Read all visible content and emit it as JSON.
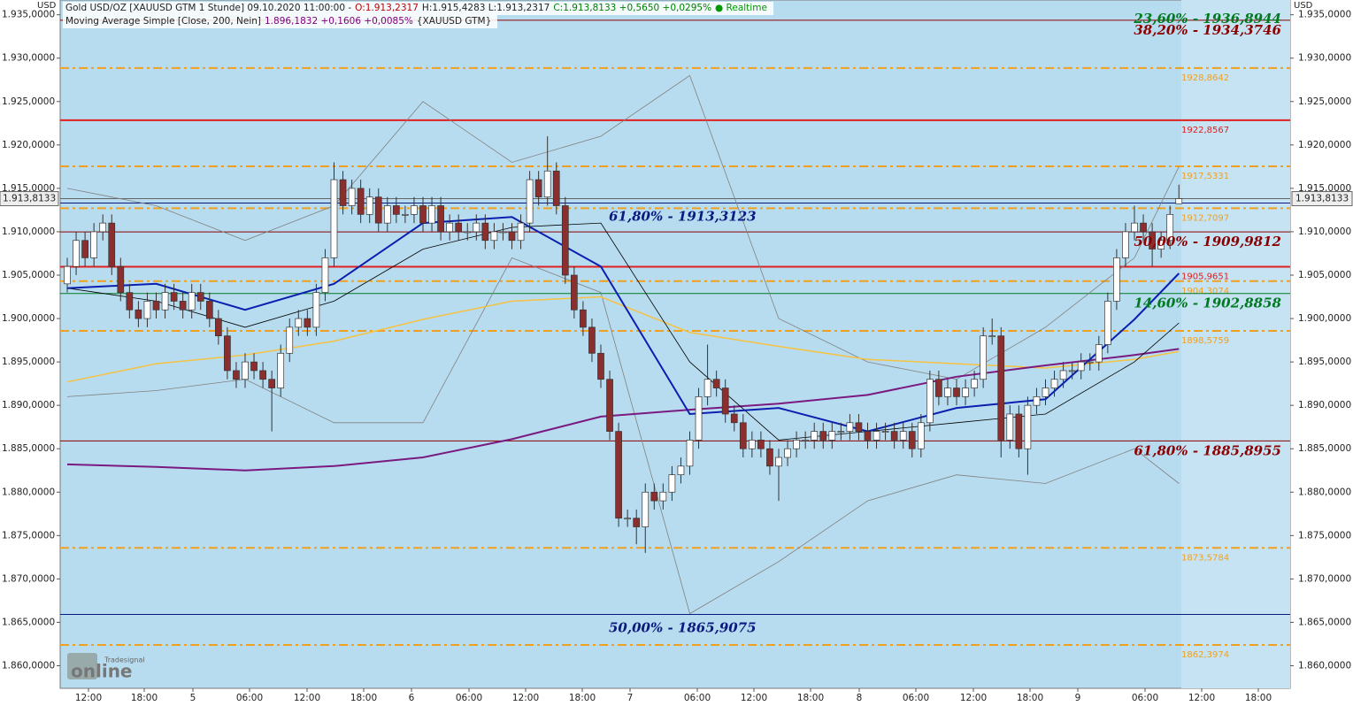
{
  "chart_data": {
    "type": "candlestick",
    "header": {
      "line1": [
        {
          "text": "Gold USD/OZ [XAUUSD GTM 1 Stunde] 09.10.2020 11:00:00 -",
          "color": "#222222"
        },
        {
          "text": "O:1.913,2317",
          "color": "#c00000"
        },
        {
          "text": "H:1.915,4283 L:1.913,2317",
          "color": "#222222"
        },
        {
          "text": "C:1.913,8133 +0,5650 +0,0295%",
          "color": "#008000"
        },
        {
          "text": "● Realtime",
          "color": "#009900"
        }
      ],
      "line2": [
        {
          "text": "Moving Average Simple [Close, 200, Nein]",
          "color": "#222222"
        },
        {
          "text": "1.896,1832 +0,1606 +0,0085%",
          "color": "#800080"
        },
        {
          "text": "{XAUUSD GTM}",
          "color": "#222222"
        }
      ]
    },
    "currency": "USD",
    "ylim": [
      1857.4,
      1936.7
    ],
    "yticks": [
      {
        "value": 1935,
        "label": "1.935,0000"
      },
      {
        "value": 1930,
        "label": "1.930,0000"
      },
      {
        "value": 1925,
        "label": "1.925,0000"
      },
      {
        "value": 1920,
        "label": "1.920,0000"
      },
      {
        "value": 1915,
        "label": "1.915,0000"
      },
      {
        "value": 1910,
        "label": "1.910,0000"
      },
      {
        "value": 1905,
        "label": "1.905,0000"
      },
      {
        "value": 1900,
        "label": "1.900,0000"
      },
      {
        "value": 1895,
        "label": "1.895,0000"
      },
      {
        "value": 1890,
        "label": "1.890,0000"
      },
      {
        "value": 1885,
        "label": "1.885,0000"
      },
      {
        "value": 1880,
        "label": "1.880,0000"
      },
      {
        "value": 1875,
        "label": "1.875,0000"
      },
      {
        "value": 1870,
        "label": "1.870,0000"
      },
      {
        "value": 1865,
        "label": "1.865,0000"
      },
      {
        "value": 1860,
        "label": "1.860,0000"
      }
    ],
    "xlabels": [
      "12:00",
      "18:00",
      "5",
      "06:00",
      "12:00",
      "18:00",
      "6",
      "06:00",
      "12:00",
      "18:00",
      "7",
      "06:00",
      "12:00",
      "18:00",
      "8",
      "06:00",
      "12:00",
      "18:00",
      "9",
      "06:00",
      "12:00",
      "18:00"
    ],
    "last_price": {
      "value": 1913.8133,
      "label": "1.913,8133"
    },
    "up_color": "#ffffff",
    "down_color": "#8b2e2e",
    "candles": [
      [
        1904,
        1907,
        1903,
        1906
      ],
      [
        1906,
        1910,
        1905,
        1909
      ],
      [
        1909,
        1910,
        1906,
        1907
      ],
      [
        1907,
        1911,
        1906,
        1910
      ],
      [
        1910,
        1912,
        1909,
        1911
      ],
      [
        1911,
        1912,
        1905,
        1906
      ],
      [
        1906,
        1907,
        1902,
        1903
      ],
      [
        1903,
        1904,
        1900,
        1901
      ],
      [
        1901,
        1902,
        1899,
        1900
      ],
      [
        1900,
        1903,
        1899,
        1902
      ],
      [
        1902,
        1903,
        1900,
        1901
      ],
      [
        1901,
        1904,
        1900,
        1903
      ],
      [
        1903,
        1904,
        1901,
        1902
      ],
      [
        1902,
        1903,
        1900,
        1901
      ],
      [
        1901,
        1904,
        1900,
        1903
      ],
      [
        1903,
        1904,
        1901,
        1902
      ],
      [
        1902,
        1903,
        1899,
        1900
      ],
      [
        1900,
        1901,
        1897,
        1898
      ],
      [
        1898,
        1899,
        1893,
        1894
      ],
      [
        1894,
        1895,
        1892,
        1893
      ],
      [
        1893,
        1896,
        1892,
        1895
      ],
      [
        1895,
        1896,
        1893,
        1894
      ],
      [
        1894,
        1895,
        1892,
        1893
      ],
      [
        1893,
        1894,
        1887,
        1892
      ],
      [
        1892,
        1897,
        1891,
        1896
      ],
      [
        1896,
        1900,
        1895,
        1899
      ],
      [
        1899,
        1901,
        1898,
        1900
      ],
      [
        1900,
        1901,
        1898,
        1899
      ],
      [
        1899,
        1904,
        1898,
        1903
      ],
      [
        1903,
        1908,
        1902,
        1907
      ],
      [
        1907,
        1918,
        1906,
        1916
      ],
      [
        1916,
        1917,
        1912,
        1913
      ],
      [
        1913,
        1916,
        1912,
        1915
      ],
      [
        1915,
        1916,
        1911,
        1912
      ],
      [
        1912,
        1915,
        1911,
        1914
      ],
      [
        1914,
        1915,
        1910,
        1911
      ],
      [
        1911,
        1914,
        1910,
        1913
      ],
      [
        1913,
        1914,
        1911,
        1912
      ],
      [
        1912,
        1913,
        1911,
        1912
      ],
      [
        1912,
        1914,
        1911,
        1913
      ],
      [
        1913,
        1914,
        1910,
        1911
      ],
      [
        1911,
        1914,
        1910,
        1913
      ],
      [
        1913,
        1914,
        1909,
        1910
      ],
      [
        1910,
        1912,
        1909,
        1911
      ],
      [
        1911,
        1912,
        1909,
        1910
      ],
      [
        1910,
        1911,
        1909,
        1910
      ],
      [
        1910,
        1912,
        1909,
        1911
      ],
      [
        1911,
        1912,
        1908,
        1909
      ],
      [
        1909,
        1911,
        1908,
        1910
      ],
      [
        1910,
        1911,
        1909,
        1910
      ],
      [
        1910,
        1911,
        1908,
        1909
      ],
      [
        1909,
        1912,
        1908,
        1911
      ],
      [
        1911,
        1917,
        1910,
        1916
      ],
      [
        1916,
        1917,
        1913,
        1914
      ],
      [
        1914,
        1921,
        1913,
        1917
      ],
      [
        1917,
        1918,
        1912,
        1913
      ],
      [
        1913,
        1914,
        1904,
        1905
      ],
      [
        1905,
        1906,
        1900,
        1901
      ],
      [
        1901,
        1902,
        1898,
        1899
      ],
      [
        1899,
        1900,
        1895,
        1896
      ],
      [
        1896,
        1897,
        1892,
        1893
      ],
      [
        1893,
        1894,
        1886,
        1887
      ],
      [
        1887,
        1888,
        1876,
        1877
      ],
      [
        1877,
        1878,
        1876,
        1877
      ],
      [
        1877,
        1878,
        1874,
        1876
      ],
      [
        1876,
        1881,
        1873,
        1880
      ],
      [
        1880,
        1881,
        1878,
        1879
      ],
      [
        1879,
        1881,
        1878,
        1880
      ],
      [
        1880,
        1883,
        1879,
        1882
      ],
      [
        1882,
        1884,
        1881,
        1883
      ],
      [
        1883,
        1887,
        1882,
        1886
      ],
      [
        1886,
        1892,
        1885,
        1891
      ],
      [
        1891,
        1897,
        1890,
        1893
      ],
      [
        1893,
        1894,
        1891,
        1892
      ],
      [
        1892,
        1893,
        1888,
        1889
      ],
      [
        1889,
        1890,
        1887,
        1888
      ],
      [
        1888,
        1889,
        1884,
        1885
      ],
      [
        1885,
        1887,
        1884,
        1886
      ],
      [
        1886,
        1887,
        1884,
        1885
      ],
      [
        1885,
        1886,
        1882,
        1883
      ],
      [
        1883,
        1885,
        1879,
        1884
      ],
      [
        1884,
        1886,
        1883,
        1885
      ],
      [
        1885,
        1887,
        1884,
        1886
      ],
      [
        1886,
        1887,
        1885,
        1886
      ],
      [
        1886,
        1888,
        1885,
        1887
      ],
      [
        1887,
        1888,
        1885,
        1886
      ],
      [
        1886,
        1888,
        1885,
        1887
      ],
      [
        1887,
        1888,
        1886,
        1887
      ],
      [
        1887,
        1889,
        1886,
        1888
      ],
      [
        1888,
        1889,
        1886,
        1887
      ],
      [
        1887,
        1888,
        1885,
        1886
      ],
      [
        1886,
        1888,
        1885,
        1887
      ],
      [
        1887,
        1888,
        1886,
        1887
      ],
      [
        1887,
        1888,
        1885,
        1886
      ],
      [
        1886,
        1888,
        1885,
        1887
      ],
      [
        1887,
        1888,
        1884,
        1885
      ],
      [
        1885,
        1889,
        1884,
        1888
      ],
      [
        1888,
        1894,
        1887,
        1893
      ],
      [
        1893,
        1894,
        1890,
        1891
      ],
      [
        1891,
        1893,
        1890,
        1892
      ],
      [
        1892,
        1893,
        1890,
        1891
      ],
      [
        1891,
        1893,
        1890,
        1892
      ],
      [
        1892,
        1894,
        1891,
        1893
      ],
      [
        1893,
        1899,
        1892,
        1898
      ],
      [
        1898,
        1900,
        1897,
        1898
      ],
      [
        1898,
        1899,
        1884,
        1886
      ],
      [
        1886,
        1890,
        1885,
        1889
      ],
      [
        1889,
        1890,
        1884,
        1885
      ],
      [
        1885,
        1891,
        1882,
        1890
      ],
      [
        1890,
        1892,
        1889,
        1891
      ],
      [
        1891,
        1893,
        1890,
        1892
      ],
      [
        1892,
        1894,
        1891,
        1893
      ],
      [
        1893,
        1895,
        1892,
        1894
      ],
      [
        1894,
        1895,
        1893,
        1894
      ],
      [
        1894,
        1896,
        1893,
        1895
      ],
      [
        1895,
        1896,
        1894,
        1895
      ],
      [
        1895,
        1898,
        1894,
        1897
      ],
      [
        1897,
        1903,
        1896,
        1902
      ],
      [
        1902,
        1908,
        1901,
        1907
      ],
      [
        1907,
        1911,
        1906,
        1910
      ],
      [
        1910,
        1913,
        1909,
        1911
      ],
      [
        1911,
        1912,
        1909,
        1910
      ],
      [
        1910,
        1911,
        1906,
        1908
      ],
      [
        1908,
        1910,
        1907,
        1909
      ],
      [
        1909,
        1913,
        1908,
        1912
      ],
      [
        1913.2317,
        1915.4283,
        1913.2317,
        1913.8133
      ]
    ],
    "indicators": [
      {
        "color": "#808080",
        "width": 0.8,
        "x": [
          0,
          10,
          20,
          30,
          40,
          50,
          60,
          70,
          80,
          90,
          100,
          110,
          120,
          125
        ],
        "values": [
          1915,
          1913,
          1909,
          1913,
          1925,
          1918,
          1921,
          1928,
          1900,
          1895,
          1893,
          1899,
          1907,
          1917.5
        ]
      },
      {
        "color": "#808080",
        "width": 0.8,
        "x": [
          0,
          10,
          20,
          30,
          40,
          50,
          60,
          70,
          80,
          90,
          100,
          110,
          120,
          125
        ],
        "values": [
          1891,
          1891.7,
          1893,
          1888,
          1888,
          1907,
          1903,
          1866,
          1872,
          1879,
          1882,
          1881,
          1885,
          1881
        ]
      },
      {
        "color": "#f5c242",
        "width": 1.5,
        "x": [
          0,
          10,
          20,
          30,
          40,
          50,
          60,
          70,
          80,
          90,
          100,
          110,
          120,
          125
        ],
        "values": [
          1892.7,
          1894.8,
          1895.8,
          1897.4,
          1899.9,
          1902,
          1902.5,
          1898.4,
          1896.8,
          1895.3,
          1894.8,
          1894.3,
          1895.3,
          1896.2
        ]
      },
      {
        "color": "#7a1a80",
        "width": 2,
        "x": [
          0,
          10,
          20,
          30,
          40,
          50,
          60,
          70,
          80,
          90,
          100,
          110,
          120,
          125
        ],
        "values": [
          1883.2,
          1882.9,
          1882.5,
          1883,
          1884,
          1886.1,
          1888.7,
          1889.5,
          1890.2,
          1891.2,
          1893.3,
          1894.6,
          1895.8,
          1896.5
        ]
      },
      {
        "color": "#000000",
        "width": 0.8,
        "x": [
          0,
          10,
          20,
          30,
          40,
          50,
          60,
          70,
          80,
          90,
          100,
          110,
          120,
          125
        ],
        "values": [
          1903.5,
          1902,
          1899,
          1902,
          1908,
          1910.5,
          1911,
          1895,
          1886,
          1887,
          1888,
          1889,
          1895,
          1899.5
        ]
      },
      {
        "color": "#0a1fb0",
        "width": 2,
        "x": [
          0,
          10,
          20,
          30,
          40,
          50,
          60,
          70,
          80,
          90,
          100,
          110,
          120,
          125
        ],
        "values": [
          1903.5,
          1904,
          1901,
          1904,
          1911,
          1911.7,
          1906,
          1889,
          1889.7,
          1887,
          1889.7,
          1890.7,
          1899.9,
          1905.2
        ]
      }
    ],
    "levels": [
      {
        "value": 1928.8642,
        "label": "1928,8642",
        "color": "#f0a020",
        "style": "dashdot"
      },
      {
        "value": 1922.8567,
        "label": "1922,8567",
        "color": "#e02020",
        "style": "solid"
      },
      {
        "value": 1917.5331,
        "label": "1917,5331",
        "color": "#f0a020",
        "style": "dashdot"
      },
      {
        "value": 1912.7097,
        "label": "1912,7097",
        "color": "#f0a020",
        "style": "dashdot"
      },
      {
        "value": 1905.9651,
        "label": "1905,9651",
        "color": "#e02020",
        "style": "solid"
      },
      {
        "value": 1904.3074,
        "label": "1904,3074",
        "color": "#f0a020",
        "style": "dashdot"
      },
      {
        "value": 1898.5759,
        "label": "1898,5759",
        "color": "#f0a020",
        "style": "dashdot"
      },
      {
        "value": 1873.5784,
        "label": "1873,5784",
        "color": "#f0a020",
        "style": "dashdot"
      },
      {
        "value": 1862.3974,
        "label": "1862,3974",
        "color": "#f0a020",
        "style": "dashdot"
      }
    ],
    "fibonacci": [
      {
        "value": 1936.8944,
        "label": "23,60% - 1936,8944",
        "color": "#007a20"
      },
      {
        "value": 1934.3746,
        "label": "38,20% - 1934,3746",
        "color": "#8b0000"
      },
      {
        "value": 1913.3123,
        "label": "61,80% - 1913,3123",
        "color": "#0a1a80"
      },
      {
        "value": 1909.9812,
        "label": "50,00% - 1909,9812",
        "color": "#8b0000"
      },
      {
        "value": 1902.8858,
        "label": "14,60% - 1902,8858",
        "color": "#007a20"
      },
      {
        "value": 1885.8955,
        "label": "61,80% - 1885,8955",
        "color": "#8b0000"
      },
      {
        "value": 1865.9075,
        "label": "50,00% - 1865,9075",
        "color": "#0a1a80"
      }
    ],
    "logo": {
      "small": "Tradesignal",
      "big": "online"
    }
  }
}
